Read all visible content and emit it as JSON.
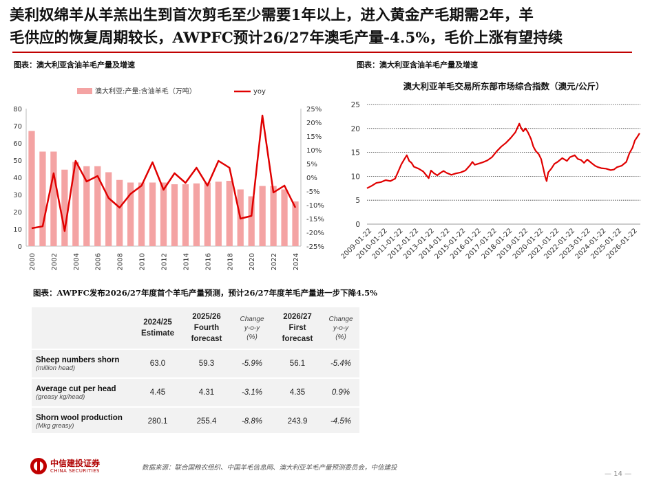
{
  "title": {
    "line1": "美利奴绵羊从羊羔出生到首次剪毛至少需要1年以上，进入黄金产毛期需2年，羊",
    "line2": "毛供应的恢复周期较长，AWPFC预计26/27年澳毛产量-4.5%，毛价上涨有望持续"
  },
  "captions": {
    "left": "图表：澳大利亚含油羊毛产量及增速",
    "right": "图表：澳大利亚含油羊毛产量及增速",
    "table": "图表：AWPFC发布2026/27年度首个羊毛产量预测，预计26/27年度羊毛产量进一步下降4.5%"
  },
  "footer": {
    "source": "数据来源：联合国粮农组织、中国羊毛信息网、澳大利亚羊毛产量预测委员会，中信建投",
    "logo_cn": "中信建投证券",
    "logo_en": "CHINA SECURITIES",
    "page": "— 14 —"
  },
  "colors": {
    "bar": "#f4a3a3",
    "line": "#e00000",
    "accent": "#c00000"
  },
  "chart_data": [
    {
      "type": "bar+line",
      "title": "",
      "categories": [
        "2000",
        "2001",
        "2002",
        "2003",
        "2004",
        "2005",
        "2006",
        "2007",
        "2008",
        "2009",
        "2010",
        "2011",
        "2012",
        "2013",
        "2014",
        "2015",
        "2016",
        "2017",
        "2018",
        "2019",
        "2020",
        "2021",
        "2022",
        "2023",
        "2024"
      ],
      "x_tick_labels": [
        "2000",
        "2002",
        "2004",
        "2006",
        "2008",
        "2010",
        "2012",
        "2014",
        "2016",
        "2018",
        "2020",
        "2022",
        "2024"
      ],
      "series": [
        {
          "name": "澳大利亚:产量:含油羊毛（万吨）",
          "type": "bar",
          "axis": "left",
          "values": [
            67,
            55,
            55,
            44.5,
            49,
            46.5,
            46.5,
            43,
            38.5,
            37,
            37,
            37,
            37,
            36,
            36,
            36.5,
            37,
            37.5,
            38,
            33,
            29,
            35,
            35,
            33,
            26
          ]
        },
        {
          "name": "yoy",
          "type": "line",
          "axis": "right",
          "values": [
            -18.5,
            -17.8,
            1.5,
            -19.5,
            6,
            -1.5,
            0.5,
            -7.5,
            -11,
            -6,
            -3,
            5.5,
            -4.5,
            1.5,
            -2,
            3.5,
            -3,
            6,
            3.5,
            -15,
            -14,
            22.5,
            -5.5,
            -3,
            -11
          ]
        }
      ],
      "y_left": {
        "range": [
          0,
          80
        ],
        "ticks": [
          "0",
          "10",
          "20",
          "30",
          "40",
          "50",
          "60",
          "70",
          "80"
        ]
      },
      "y_right": {
        "range": [
          -25,
          25
        ],
        "ticks": [
          "-25%",
          "-20%",
          "-15%",
          "-10%",
          "-5%",
          "0%",
          "5%",
          "10%",
          "15%",
          "20%",
          "25%"
        ]
      },
      "legend": {
        "position": "top",
        "entries": [
          "澳大利亚:产量:含油羊毛（万吨）",
          "yoy"
        ]
      },
      "grid": false
    },
    {
      "type": "line",
      "title": "澳大利亚羊毛交易所东部市场综合指数（澳元/公斤）",
      "x_tick_labels": [
        "2009-01-22",
        "2010-01-22",
        "2011-01-22",
        "2012-01-22",
        "2013-01-22",
        "2014-01-22",
        "2015-01-22",
        "2016-01-22",
        "2017-01-22",
        "2018-01-22",
        "2019-01-22",
        "2020-01-22",
        "2021-01-22",
        "2022-01-22",
        "2023-01-22",
        "2024-01-22",
        "2025-01-22",
        "2026-01-22"
      ],
      "x_range": [
        2009.0,
        2026.5
      ],
      "series": [
        {
          "name": "",
          "points": [
            [
              2009.0,
              7.5
            ],
            [
              2009.3,
              8.0
            ],
            [
              2009.6,
              8.6
            ],
            [
              2009.9,
              8.8
            ],
            [
              2010.2,
              9.2
            ],
            [
              2010.5,
              9.0
            ],
            [
              2010.8,
              9.5
            ],
            [
              2011.0,
              11.0
            ],
            [
              2011.2,
              12.5
            ],
            [
              2011.4,
              13.6
            ],
            [
              2011.55,
              14.4
            ],
            [
              2011.7,
              13.2
            ],
            [
              2011.85,
              12.8
            ],
            [
              2012.0,
              12.0
            ],
            [
              2012.3,
              11.6
            ],
            [
              2012.6,
              11.0
            ],
            [
              2012.8,
              10.2
            ],
            [
              2012.95,
              9.6
            ],
            [
              2013.1,
              11.2
            ],
            [
              2013.3,
              10.6
            ],
            [
              2013.5,
              10.2
            ],
            [
              2013.7,
              10.7
            ],
            [
              2013.9,
              11.1
            ],
            [
              2014.1,
              10.7
            ],
            [
              2014.4,
              10.3
            ],
            [
              2014.7,
              10.6
            ],
            [
              2015.0,
              10.8
            ],
            [
              2015.3,
              11.2
            ],
            [
              2015.6,
              12.3
            ],
            [
              2015.75,
              13.0
            ],
            [
              2015.9,
              12.4
            ],
            [
              2016.1,
              12.6
            ],
            [
              2016.4,
              12.9
            ],
            [
              2016.7,
              13.3
            ],
            [
              2017.0,
              14.0
            ],
            [
              2017.3,
              15.2
            ],
            [
              2017.6,
              16.2
            ],
            [
              2017.9,
              17.0
            ],
            [
              2018.2,
              18.0
            ],
            [
              2018.5,
              19.2
            ],
            [
              2018.75,
              21.0
            ],
            [
              2018.85,
              20.2
            ],
            [
              2019.0,
              19.4
            ],
            [
              2019.15,
              20.0
            ],
            [
              2019.3,
              19.2
            ],
            [
              2019.5,
              17.8
            ],
            [
              2019.65,
              16.2
            ],
            [
              2019.8,
              15.3
            ],
            [
              2020.0,
              14.6
            ],
            [
              2020.15,
              13.6
            ],
            [
              2020.3,
              11.5
            ],
            [
              2020.4,
              10.0
            ],
            [
              2020.5,
              9.0
            ],
            [
              2020.6,
              10.8
            ],
            [
              2020.8,
              11.6
            ],
            [
              2021.0,
              12.6
            ],
            [
              2021.2,
              13.0
            ],
            [
              2021.5,
              13.8
            ],
            [
              2021.8,
              13.2
            ],
            [
              2022.0,
              14.0
            ],
            [
              2022.3,
              14.4
            ],
            [
              2022.5,
              13.6
            ],
            [
              2022.7,
              13.4
            ],
            [
              2022.9,
              12.8
            ],
            [
              2023.1,
              13.5
            ],
            [
              2023.4,
              12.7
            ],
            [
              2023.6,
              12.2
            ],
            [
              2023.8,
              11.9
            ],
            [
              2024.0,
              11.7
            ],
            [
              2024.3,
              11.6
            ],
            [
              2024.6,
              11.3
            ],
            [
              2024.8,
              11.4
            ],
            [
              2025.0,
              11.9
            ],
            [
              2025.3,
              12.2
            ],
            [
              2025.6,
              13.0
            ],
            [
              2025.8,
              14.8
            ],
            [
              2026.0,
              16.0
            ],
            [
              2026.15,
              17.5
            ],
            [
              2026.3,
              18.2
            ],
            [
              2026.45,
              19.0
            ]
          ]
        }
      ],
      "y_axis": {
        "range": [
          0,
          25
        ],
        "ticks": [
          "0",
          "5",
          "10",
          "15",
          "20",
          "25"
        ]
      },
      "grid": "horizontal-dashed"
    }
  ],
  "table": {
    "headers": [
      {
        "text": "2024/25\nEstimate",
        "italic": false
      },
      {
        "text": "2025/26\nFourth\nforecast",
        "italic": false
      },
      {
        "text": "Change\ny-o-y\n(%)",
        "italic": true
      },
      {
        "text": "2026/27\nFirst\nforecast",
        "italic": false
      },
      {
        "text": "Change\ny-o-y\n(%)",
        "italic": true
      }
    ],
    "rows": [
      {
        "label": "Sheep numbers shorn",
        "unit": "(million head)",
        "values": [
          "63.0",
          "59.3",
          "-5.9%",
          "56.1",
          "-5.4%"
        ]
      },
      {
        "label": "Average cut per head",
        "unit": "(greasy kg/head)",
        "values": [
          "4.45",
          "4.31",
          "-3.1%",
          "4.35",
          "0.9%"
        ]
      },
      {
        "label": "Shorn wool production",
        "unit": "(Mkg greasy)",
        "values": [
          "280.1",
          "255.4",
          "-8.8%",
          "243.9",
          "-4.5%"
        ]
      }
    ]
  }
}
